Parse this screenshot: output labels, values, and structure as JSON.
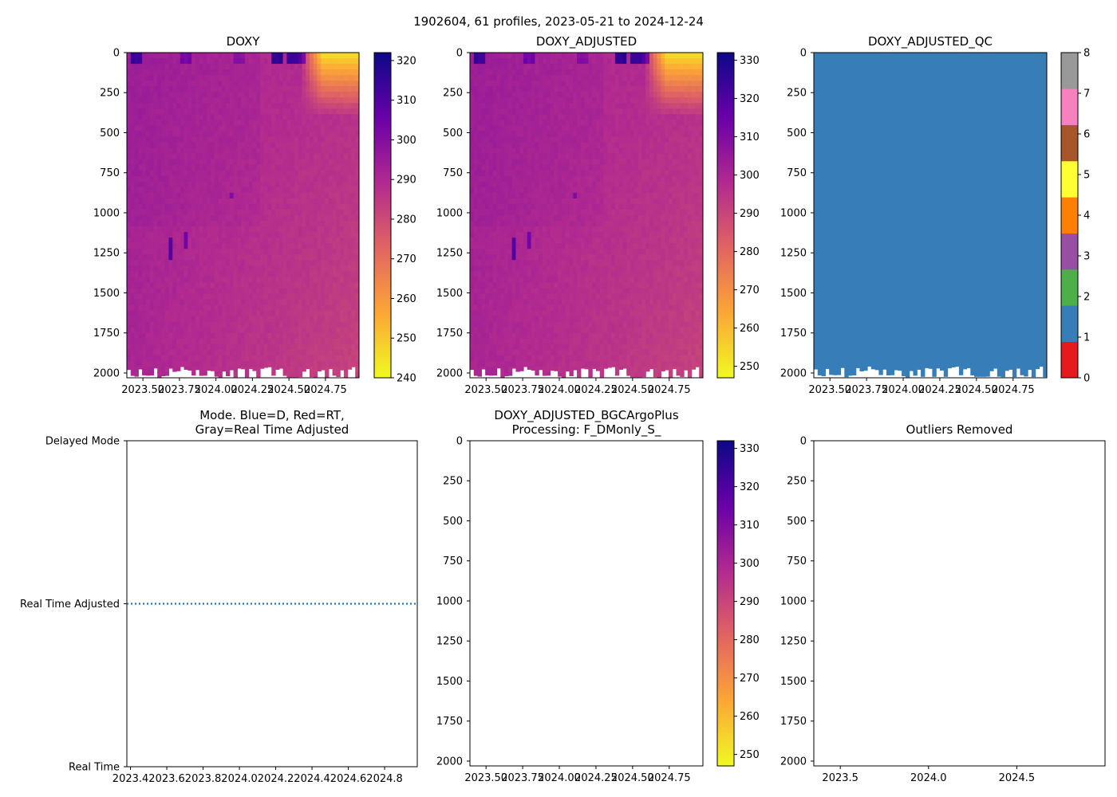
{
  "figure_title": "1902604, 61 profiles, 2023-05-21 to 2024-12-24",
  "colormaps": {
    "plasma": [
      "#0d0887",
      "#6a00a8",
      "#b12a90",
      "#e16462",
      "#fca636",
      "#f0f921"
    ],
    "qc": [
      "#e41a1c",
      "#377eb8",
      "#4daf4a",
      "#984ea3",
      "#ff7f00",
      "#ffff33",
      "#a65628",
      "#f781bf",
      "#999999"
    ]
  },
  "chart_data": [
    {
      "id": "doxy",
      "type": "heatmap",
      "title": "DOXY",
      "x_range": [
        2023.39,
        2024.98
      ],
      "y_range": [
        2030,
        0
      ],
      "x_ticks": [
        2023.5,
        2023.75,
        2024.0,
        2024.25,
        2024.5,
        2024.75
      ],
      "x_tick_labels": [
        "2023.50",
        "2023.75",
        "2024.00",
        "2024.25",
        "2024.50",
        "2024.75"
      ],
      "y_ticks": [
        0,
        250,
        500,
        750,
        1000,
        1250,
        1500,
        1750,
        2000
      ],
      "y_tick_labels": [
        "0",
        "250",
        "500",
        "750",
        "1000",
        "1250",
        "1500",
        "1750",
        "2000"
      ],
      "colorbar": {
        "range": [
          240,
          322
        ],
        "ticks": [
          240,
          250,
          260,
          270,
          280,
          290,
          300,
          310,
          320
        ],
        "labels": [
          "240",
          "250",
          "260",
          "270",
          "280",
          "290",
          "300",
          "310",
          "320"
        ]
      },
      "surface_hotspots": [
        [
          2023.45,
          316
        ],
        [
          2023.8,
          305
        ],
        [
          2024.15,
          300
        ],
        [
          2024.42,
          318
        ],
        [
          2024.52,
          316
        ],
        [
          2024.57,
          312
        ]
      ],
      "low_surface_zone": {
        "x_start": 2024.58,
        "x_end": 2024.98,
        "min_value": 245,
        "max_depth": 400
      }
    },
    {
      "id": "doxy_adjusted",
      "type": "heatmap",
      "title": "DOXY_ADJUSTED",
      "x_range": [
        2023.39,
        2024.98
      ],
      "y_range": [
        2030,
        0
      ],
      "x_ticks": [
        2023.5,
        2023.75,
        2024.0,
        2024.25,
        2024.5,
        2024.75
      ],
      "x_tick_labels": [
        "2023.50",
        "2023.75",
        "2024.00",
        "2024.25",
        "2024.50",
        "2024.75"
      ],
      "y_ticks": [
        0,
        250,
        500,
        750,
        1000,
        1250,
        1500,
        1750,
        2000
      ],
      "y_tick_labels": [
        "0",
        "250",
        "500",
        "750",
        "1000",
        "1250",
        "1500",
        "1750",
        "2000"
      ],
      "colorbar": {
        "range": [
          247,
          332
        ],
        "ticks": [
          250,
          260,
          270,
          280,
          290,
          300,
          310,
          320,
          330
        ],
        "labels": [
          "250",
          "260",
          "270",
          "280",
          "290",
          "300",
          "310",
          "320",
          "330"
        ]
      },
      "surface_hotspots": [
        [
          2023.45,
          326
        ],
        [
          2023.8,
          315
        ],
        [
          2024.15,
          310
        ],
        [
          2024.42,
          328
        ],
        [
          2024.52,
          326
        ],
        [
          2024.57,
          322
        ]
      ],
      "low_surface_zone": {
        "x_start": 2024.58,
        "x_end": 2024.98,
        "min_value": 252,
        "max_depth": 400
      }
    },
    {
      "id": "doxy_adjusted_qc",
      "type": "heatmap",
      "title": "DOXY_ADJUSTED_QC",
      "x_range": [
        2023.39,
        2024.98
      ],
      "y_range": [
        2030,
        0
      ],
      "x_ticks": [
        2023.5,
        2023.75,
        2024.0,
        2024.25,
        2024.5,
        2024.75
      ],
      "x_tick_labels": [
        "2023.50",
        "2023.75",
        "2024.00",
        "2024.25",
        "2024.50",
        "2024.75"
      ],
      "y_ticks": [
        0,
        250,
        500,
        750,
        1000,
        1250,
        1500,
        1750,
        2000
      ],
      "y_tick_labels": [
        "0",
        "250",
        "500",
        "750",
        "1000",
        "1250",
        "1500",
        "1750",
        "2000"
      ],
      "qc_value": 1,
      "colorbar": {
        "range": [
          0,
          8
        ],
        "ticks": [
          0,
          1,
          2,
          3,
          4,
          5,
          6,
          7,
          8
        ],
        "labels": [
          "0",
          "1",
          "2",
          "3",
          "4",
          "5",
          "6",
          "7",
          "8"
        ]
      }
    },
    {
      "id": "mode",
      "type": "line",
      "title_lines": [
        "Mode. Blue=D, Red=RT,",
        "Gray=Real Time Adjusted"
      ],
      "x_range": [
        2023.38,
        2024.98
      ],
      "y_range": [
        0,
        2
      ],
      "x_ticks": [
        2023.4,
        2023.6,
        2023.8,
        2024.0,
        2024.2,
        2024.4,
        2024.6,
        2024.8
      ],
      "x_tick_labels": [
        "2023.4",
        "2023.6",
        "2023.8",
        "2024.0",
        "2024.2",
        "2024.4",
        "2024.6",
        "2024.8"
      ],
      "y_ticks": [
        2,
        1,
        0
      ],
      "y_tick_labels": [
        "Delayed Mode",
        "Real Time Adjusted",
        "Real Time"
      ],
      "series": [
        {
          "name": "mode",
          "x": [
            2023.38,
            2024.98
          ],
          "y": [
            1,
            1
          ],
          "style": "dotted",
          "color": "#1f77b4"
        }
      ]
    },
    {
      "id": "bgcargoplus",
      "type": "heatmap",
      "title_lines": [
        "DOXY_ADJUSTED_BGCArgoPlus",
        "Processing: F_DMonly_S_"
      ],
      "x_range": [
        2023.39,
        2024.98
      ],
      "y_range": [
        2030,
        0
      ],
      "x_ticks": [
        2023.5,
        2023.75,
        2024.0,
        2024.25,
        2024.5,
        2024.75
      ],
      "x_tick_labels": [
        "2023.50",
        "2023.75",
        "2024.00",
        "2024.25",
        "2024.50",
        "2024.75"
      ],
      "y_ticks": [
        0,
        250,
        500,
        750,
        1000,
        1250,
        1500,
        1750,
        2000
      ],
      "y_tick_labels": [
        "0",
        "250",
        "500",
        "750",
        "1000",
        "1250",
        "1500",
        "1750",
        "2000"
      ],
      "empty": true,
      "colorbar": {
        "range": [
          247,
          332
        ],
        "ticks": [
          250,
          260,
          270,
          280,
          290,
          300,
          310,
          320,
          330
        ],
        "labels": [
          "250",
          "260",
          "270",
          "280",
          "290",
          "300",
          "310",
          "320",
          "330"
        ]
      }
    },
    {
      "id": "outliers",
      "type": "scatter",
      "title": "Outliers Removed",
      "x_range": [
        2023.35,
        2025.0
      ],
      "y_range": [
        2030,
        0
      ],
      "x_ticks": [
        2023.5,
        2024.0,
        2024.5
      ],
      "x_tick_labels": [
        "2023.5",
        "2024.0",
        "2024.5"
      ],
      "y_ticks": [
        0,
        250,
        500,
        750,
        1000,
        1250,
        1500,
        1750,
        2000
      ],
      "y_tick_labels": [
        "0",
        "250",
        "500",
        "750",
        "1000",
        "1250",
        "1500",
        "1750",
        "2000"
      ],
      "points": []
    }
  ]
}
